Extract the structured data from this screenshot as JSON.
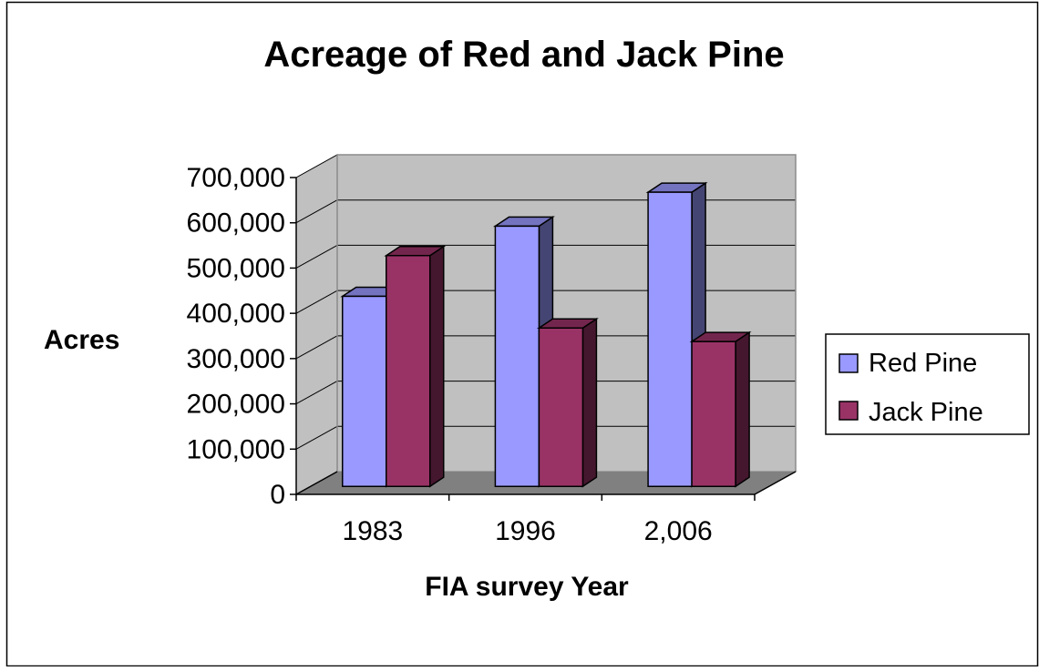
{
  "chart_data": {
    "type": "bar",
    "title": "Acreage of Red and Jack Pine",
    "xlabel": "FIA survey Year",
    "ylabel": "Acres",
    "categories": [
      "1983",
      "1996",
      "2,006"
    ],
    "series": [
      {
        "name": "Red Pine",
        "values": [
          420000,
          575000,
          650000
        ],
        "color": "#9999ff"
      },
      {
        "name": "Jack Pine",
        "values": [
          510000,
          350000,
          320000
        ],
        "color": "#993366"
      }
    ],
    "ylim": [
      0,
      700000
    ],
    "yticks": [
      "0",
      "100,000",
      "200,000",
      "300,000",
      "400,000",
      "500,000",
      "600,000",
      "700,000"
    ],
    "grid": true,
    "legend_position": "right",
    "colors": {
      "wall": "#c0c0c0",
      "floor": "#808080",
      "gridline": "#000000"
    }
  }
}
